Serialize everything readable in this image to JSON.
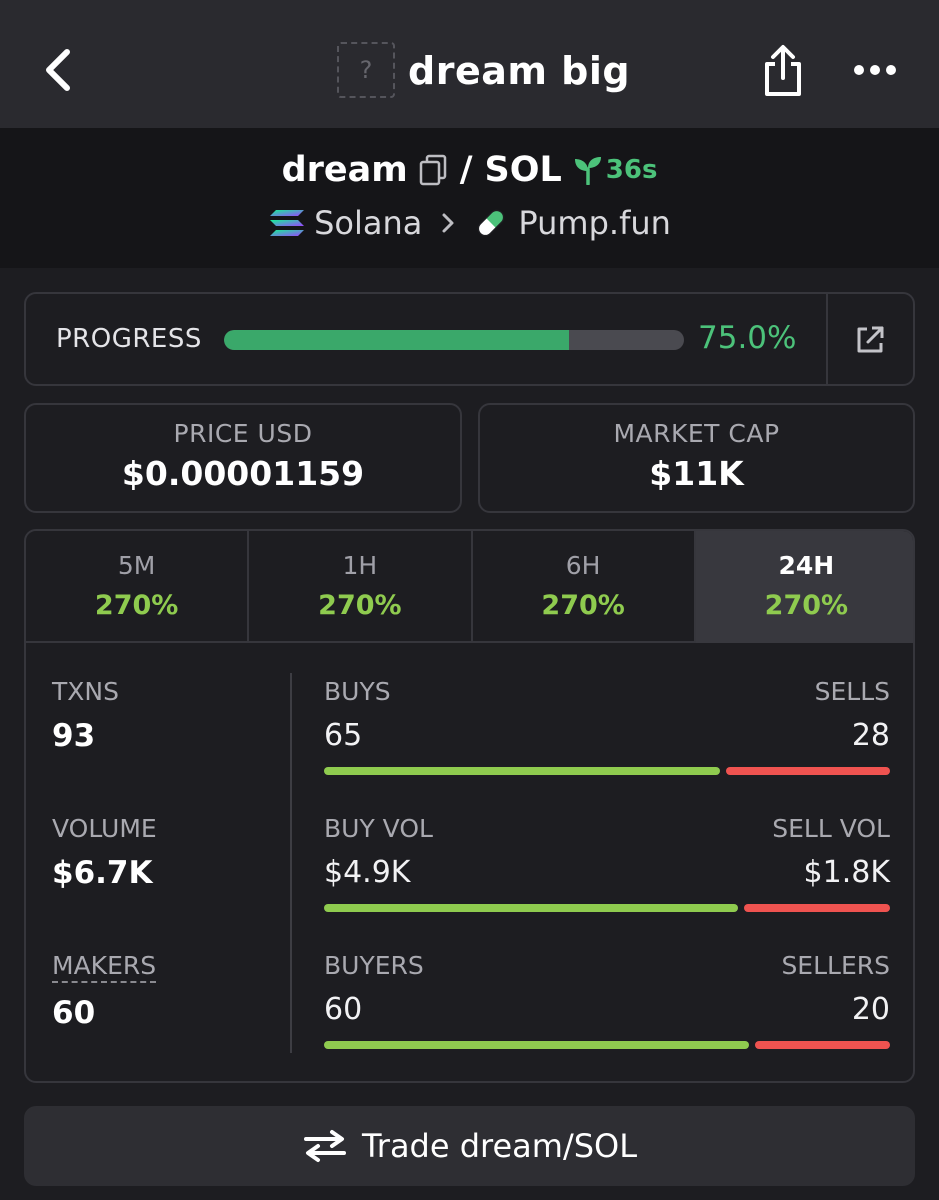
{
  "header": {
    "title": "dream big",
    "thumb_placeholder": "?",
    "icons": {
      "back": "chevron-left-icon",
      "share": "share-icon",
      "more": "ellipsis-icon"
    }
  },
  "pair": {
    "base": "dream",
    "separator": "/",
    "quote": "SOL",
    "age": "36s",
    "chain": "Solana",
    "dex": "Pump.fun",
    "accent_color": "#4cc27a"
  },
  "progress": {
    "label": "PROGRESS",
    "value": "75.0%",
    "fraction": 0.75
  },
  "price": {
    "label": "PRICE USD",
    "value": "$0.00001159"
  },
  "market_cap": {
    "label": "MARKET CAP",
    "value": "$11K"
  },
  "tabs": [
    {
      "label": "5M",
      "change": "270%"
    },
    {
      "label": "1H",
      "change": "270%"
    },
    {
      "label": "6H",
      "change": "270%"
    },
    {
      "label": "24H",
      "change": "270%",
      "active": true
    }
  ],
  "metrics": {
    "txns": {
      "label": "TXNS",
      "value": "93"
    },
    "volume": {
      "label": "VOLUME",
      "value": "$6.7K"
    },
    "makers": {
      "label": "MAKERS",
      "value": "60"
    }
  },
  "splits": {
    "txns": {
      "left_label": "BUYS",
      "right_label": "SELLS",
      "left_value": "65",
      "right_value": "28",
      "buy_fraction": 0.699
    },
    "volume": {
      "left_label": "BUY VOL",
      "right_label": "SELL VOL",
      "left_value": "$4.9K",
      "right_value": "$1.8K",
      "buy_fraction": 0.731
    },
    "makers": {
      "left_label": "BUYERS",
      "right_label": "SELLERS",
      "left_value": "60",
      "right_value": "20",
      "buy_fraction": 0.75
    }
  },
  "colors": {
    "buy": "#8fcb4f",
    "sell": "#ef5350",
    "progress": "#3aa86a"
  },
  "trade": {
    "label": "Trade dream/SOL"
  }
}
